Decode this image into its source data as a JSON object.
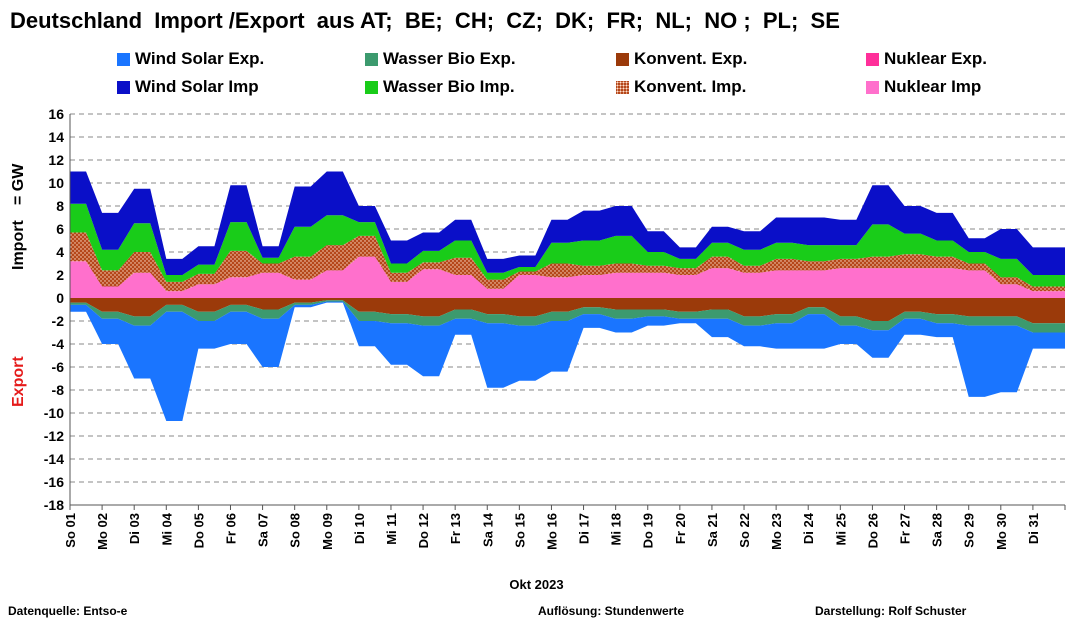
{
  "title": "Deutschland  Import /Export  aus AT;  BE;  CH;  CZ;  DK;  FR;  NL;  NO ;  PL;  SE",
  "legend": [
    {
      "label": "Wind Solar Exp.",
      "color": "#1a75ff",
      "pattern": false
    },
    {
      "label": "Wasser Bio Exp.",
      "color": "#3c9a6e",
      "pattern": false
    },
    {
      "label": "Konvent. Exp.",
      "color": "#9b3a0a",
      "pattern": false
    },
    {
      "label": "Nuklear Exp.",
      "color": "#ff2f9a",
      "pattern": false
    },
    {
      "label": "Wind Solar Imp",
      "color": "#0a0fc8",
      "pattern": false
    },
    {
      "label": "Wasser Bio Imp.",
      "color": "#19cc19",
      "pattern": false
    },
    {
      "label": "Konvent. Imp.",
      "color": "#b5471a",
      "pattern": true
    },
    {
      "label": "Nuklear Imp",
      "color": "#ff70cc",
      "pattern": false
    }
  ],
  "footer": {
    "source": "Datenquelle: Entso-e",
    "resolution": "Auflösung: Stundenwerte",
    "author": "Darstellung:  Rolf Schuster"
  },
  "chart_data": {
    "type": "area",
    "title": "Deutschland  Import /Export  aus AT;  BE;  CH;  CZ;  DK;  FR;  NL;  NO ;  PL;  SE",
    "xlabel": "Okt 2023",
    "ylabel_import": "Import",
    "ylabel_unit": "= GW",
    "ylabel_export": "Export",
    "ylim": [
      -18,
      16
    ],
    "yticks": [
      16,
      14,
      12,
      10,
      8,
      6,
      4,
      2,
      0,
      -2,
      -4,
      -6,
      -8,
      -10,
      -12,
      -14,
      -16,
      -18
    ],
    "grid": true,
    "legend_position": "top",
    "categories": [
      "So 01",
      "Mo 02",
      "Di 03",
      "Mi 04",
      "Do 05",
      "Fr 06",
      "Sa 07",
      "So 08",
      "Mo 09",
      "Di 10",
      "Mi 11",
      "Do 12",
      "Fr 13",
      "Sa 14",
      "So 15",
      "Mo 16",
      "Di 17",
      "Mi 18",
      "Do 19",
      "Fr 20",
      "Sa 21",
      "So 22",
      "Mo 23",
      "Di 24",
      "Mi 25",
      "Do 26",
      "Fr 27",
      "Sa 28",
      "So 29",
      "Mo 30",
      "Di 31"
    ],
    "import_series": [
      {
        "name": "Nuklear Imp",
        "color": "#ff70cc",
        "values": [
          3.2,
          1.0,
          2.2,
          0.6,
          1.2,
          1.8,
          2.2,
          1.6,
          2.4,
          3.6,
          1.4,
          2.5,
          2.0,
          0.8,
          2.0,
          1.8,
          2.0,
          2.2,
          2.2,
          2.0,
          2.6,
          2.2,
          2.4,
          2.4,
          2.6,
          2.6,
          2.6,
          2.6,
          2.4,
          1.2,
          0.6
        ]
      },
      {
        "name": "Konvent. Imp.",
        "color": "#b5471a",
        "values": [
          2.5,
          1.4,
          1.8,
          0.8,
          0.9,
          2.3,
          0.8,
          2.0,
          2.2,
          1.8,
          0.8,
          0.6,
          1.5,
          0.8,
          0.3,
          1.2,
          0.8,
          0.8,
          0.6,
          0.6,
          1.0,
          0.6,
          1.0,
          0.8,
          0.8,
          1.0,
          1.2,
          1.0,
          0.6,
          0.6,
          0.4
        ]
      },
      {
        "name": "Wasser Bio Imp.",
        "color": "#19cc19",
        "values": [
          2.5,
          1.8,
          2.5,
          0.6,
          0.8,
          2.5,
          0.5,
          2.6,
          2.6,
          1.2,
          0.8,
          1.0,
          1.5,
          0.6,
          0.4,
          1.8,
          2.2,
          2.4,
          1.2,
          0.8,
          1.2,
          1.4,
          1.4,
          1.4,
          1.2,
          2.8,
          1.8,
          1.4,
          1.0,
          1.6,
          1.0
        ]
      },
      {
        "name": "Wind Solar Imp",
        "color": "#0a0fc8",
        "values": [
          2.8,
          3.2,
          3.0,
          1.4,
          1.6,
          3.2,
          1.0,
          3.5,
          3.8,
          1.4,
          2.0,
          1.6,
          1.8,
          1.2,
          1.0,
          2.0,
          2.6,
          2.6,
          1.8,
          1.0,
          1.4,
          1.6,
          2.2,
          2.4,
          2.2,
          3.4,
          2.4,
          2.4,
          1.2,
          2.6,
          2.4
        ]
      }
    ],
    "export_series": [
      {
        "name": "Nuklear Exp.",
        "color": "#ff2f9a",
        "values": [
          0,
          0,
          0,
          0,
          0,
          0,
          0,
          0,
          0,
          0,
          0,
          0,
          0,
          0,
          0,
          0,
          0,
          0,
          0,
          0,
          0,
          0,
          0,
          0,
          0,
          0,
          0,
          0,
          0,
          0,
          0
        ]
      },
      {
        "name": "Konvent. Exp.",
        "color": "#9b3a0a",
        "values": [
          -0.4,
          -1.2,
          -1.6,
          -0.6,
          -1.2,
          -0.6,
          -1.0,
          -0.4,
          -0.2,
          -1.2,
          -1.4,
          -1.6,
          -1.0,
          -1.4,
          -1.6,
          -1.2,
          -0.8,
          -1.0,
          -1.0,
          -1.2,
          -1.0,
          -1.6,
          -1.4,
          -0.8,
          -1.6,
          -2.0,
          -1.2,
          -1.4,
          -1.6,
          -1.6,
          -2.2
        ]
      },
      {
        "name": "Wasser Bio Exp.",
        "color": "#3c9a6e",
        "values": [
          -0.2,
          -0.6,
          -0.8,
          -0.6,
          -0.8,
          -0.6,
          -0.8,
          -0.2,
          -0.1,
          -0.8,
          -0.8,
          -0.8,
          -0.8,
          -0.8,
          -0.8,
          -0.8,
          -0.6,
          -0.8,
          -0.6,
          -0.6,
          -0.8,
          -0.8,
          -0.8,
          -0.6,
          -0.8,
          -0.8,
          -0.6,
          -0.8,
          -0.8,
          -0.8,
          -0.8
        ]
      },
      {
        "name": "Wind Solar Exp.",
        "color": "#1a75ff",
        "values": [
          -0.6,
          -2.2,
          -4.6,
          -9.5,
          -2.4,
          -2.8,
          -4.2,
          -0.2,
          -0.1,
          -2.2,
          -3.6,
          -4.4,
          -1.4,
          -5.6,
          -4.8,
          -4.4,
          -1.2,
          -1.2,
          -0.8,
          -0.4,
          -1.6,
          -1.8,
          -2.2,
          -3.0,
          -1.6,
          -2.4,
          -1.4,
          -1.2,
          -6.2,
          -5.8,
          -1.4
        ]
      }
    ]
  }
}
